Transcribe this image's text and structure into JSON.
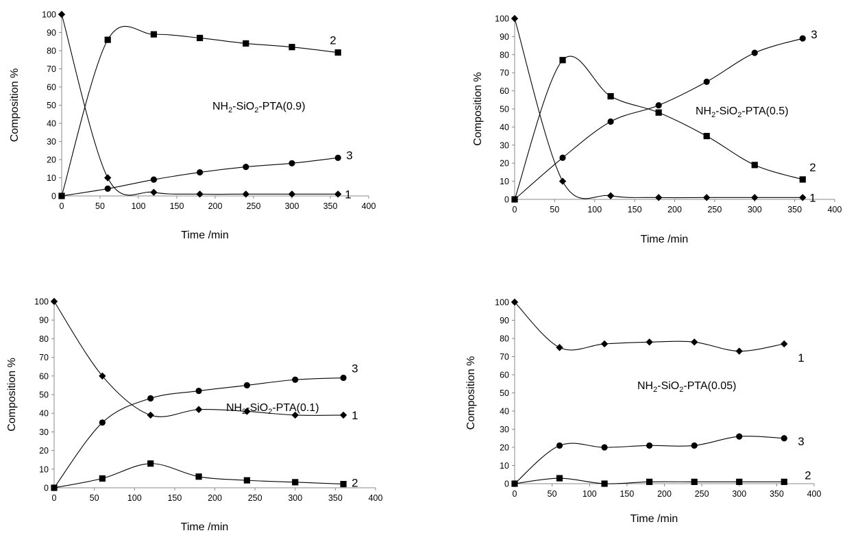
{
  "chart_data": [
    {
      "type": "line",
      "panel": "top-left",
      "xlabel": "Time /min",
      "ylabel": "Composition %",
      "xlim": [
        0,
        400
      ],
      "ylim": [
        0,
        100
      ],
      "xticks": [
        0,
        50,
        100,
        150,
        200,
        250,
        300,
        350,
        400
      ],
      "yticks": [
        0,
        10,
        20,
        30,
        40,
        50,
        60,
        70,
        80,
        90,
        100
      ],
      "annotation_parts": [
        "NH",
        "2",
        "-SiO",
        "2",
        "-PTA(0.9)"
      ],
      "series": [
        {
          "name": "1",
          "marker": "diamond",
          "x": [
            0,
            60,
            120,
            180,
            240,
            300,
            360
          ],
          "y": [
            100,
            10,
            2,
            1,
            1,
            1,
            1
          ]
        },
        {
          "name": "2",
          "marker": "square",
          "x": [
            0,
            60,
            120,
            180,
            240,
            300,
            360
          ],
          "y": [
            0,
            86,
            89,
            87,
            84,
            82,
            79
          ]
        },
        {
          "name": "3",
          "marker": "circle",
          "x": [
            0,
            60,
            120,
            180,
            240,
            300,
            360
          ],
          "y": [
            0,
            4,
            9,
            13,
            16,
            18,
            21
          ]
        }
      ]
    },
    {
      "type": "line",
      "panel": "top-right",
      "xlabel": "Time /min",
      "ylabel": "Composition %",
      "xlim": [
        0,
        400
      ],
      "ylim": [
        0,
        100
      ],
      "xticks": [
        0,
        50,
        100,
        150,
        200,
        250,
        300,
        350,
        400
      ],
      "yticks": [
        0,
        10,
        20,
        30,
        40,
        50,
        60,
        70,
        80,
        90,
        100
      ],
      "annotation_parts": [
        "NH",
        "2",
        "-SiO",
        "2",
        "-PTA(0.5)"
      ],
      "series": [
        {
          "name": "1",
          "marker": "diamond",
          "x": [
            0,
            60,
            120,
            180,
            240,
            300,
            360
          ],
          "y": [
            100,
            10,
            2,
            1,
            1,
            1,
            1
          ]
        },
        {
          "name": "2",
          "marker": "square",
          "x": [
            0,
            60,
            120,
            180,
            240,
            300,
            360
          ],
          "y": [
            0,
            77,
            57,
            48,
            35,
            19,
            11
          ]
        },
        {
          "name": "3",
          "marker": "circle",
          "x": [
            0,
            60,
            120,
            180,
            240,
            300,
            360
          ],
          "y": [
            0,
            23,
            43,
            52,
            65,
            81,
            89
          ]
        }
      ]
    },
    {
      "type": "line",
      "panel": "bottom-left",
      "xlabel": "Time /min",
      "ylabel": "Composition %",
      "xlim": [
        0,
        400
      ],
      "ylim": [
        0,
        100
      ],
      "xticks": [
        0,
        50,
        100,
        150,
        200,
        250,
        300,
        350,
        400
      ],
      "yticks": [
        0,
        10,
        20,
        30,
        40,
        50,
        60,
        70,
        80,
        90,
        100
      ],
      "annotation_parts": [
        "NH",
        "2",
        "-SiO",
        "2",
        "-PTA(0.1)"
      ],
      "series": [
        {
          "name": "1",
          "marker": "diamond",
          "x": [
            0,
            60,
            120,
            180,
            240,
            300,
            360
          ],
          "y": [
            100,
            60,
            39,
            42,
            41,
            39,
            39
          ]
        },
        {
          "name": "2",
          "marker": "square",
          "x": [
            0,
            60,
            120,
            180,
            240,
            300,
            360
          ],
          "y": [
            0,
            5,
            13,
            6,
            4,
            3,
            2
          ]
        },
        {
          "name": "3",
          "marker": "circle",
          "x": [
            0,
            60,
            120,
            180,
            240,
            300,
            360
          ],
          "y": [
            0,
            35,
            48,
            52,
            55,
            58,
            59
          ]
        }
      ]
    },
    {
      "type": "line",
      "panel": "bottom-right",
      "xlabel": "Time /min",
      "ylabel": "Composition %",
      "xlim": [
        0,
        400
      ],
      "ylim": [
        0,
        100
      ],
      "xticks": [
        0,
        50,
        100,
        150,
        200,
        250,
        300,
        350,
        400
      ],
      "yticks": [
        0,
        10,
        20,
        30,
        40,
        50,
        60,
        70,
        80,
        90,
        100
      ],
      "annotation_parts": [
        "NH",
        "2",
        "-SiO",
        "2",
        "-PTA(0.05)"
      ],
      "series": [
        {
          "name": "1",
          "marker": "diamond",
          "x": [
            0,
            60,
            120,
            180,
            240,
            300,
            360
          ],
          "y": [
            100,
            75,
            77,
            78,
            78,
            73,
            77
          ]
        },
        {
          "name": "2",
          "marker": "square",
          "x": [
            0,
            60,
            120,
            180,
            240,
            300,
            360
          ],
          "y": [
            0,
            3,
            0,
            1,
            1,
            1,
            1
          ]
        },
        {
          "name": "3",
          "marker": "circle",
          "x": [
            0,
            60,
            120,
            180,
            240,
            300,
            360
          ],
          "y": [
            0,
            21,
            20,
            21,
            21,
            26,
            25
          ]
        }
      ]
    }
  ]
}
